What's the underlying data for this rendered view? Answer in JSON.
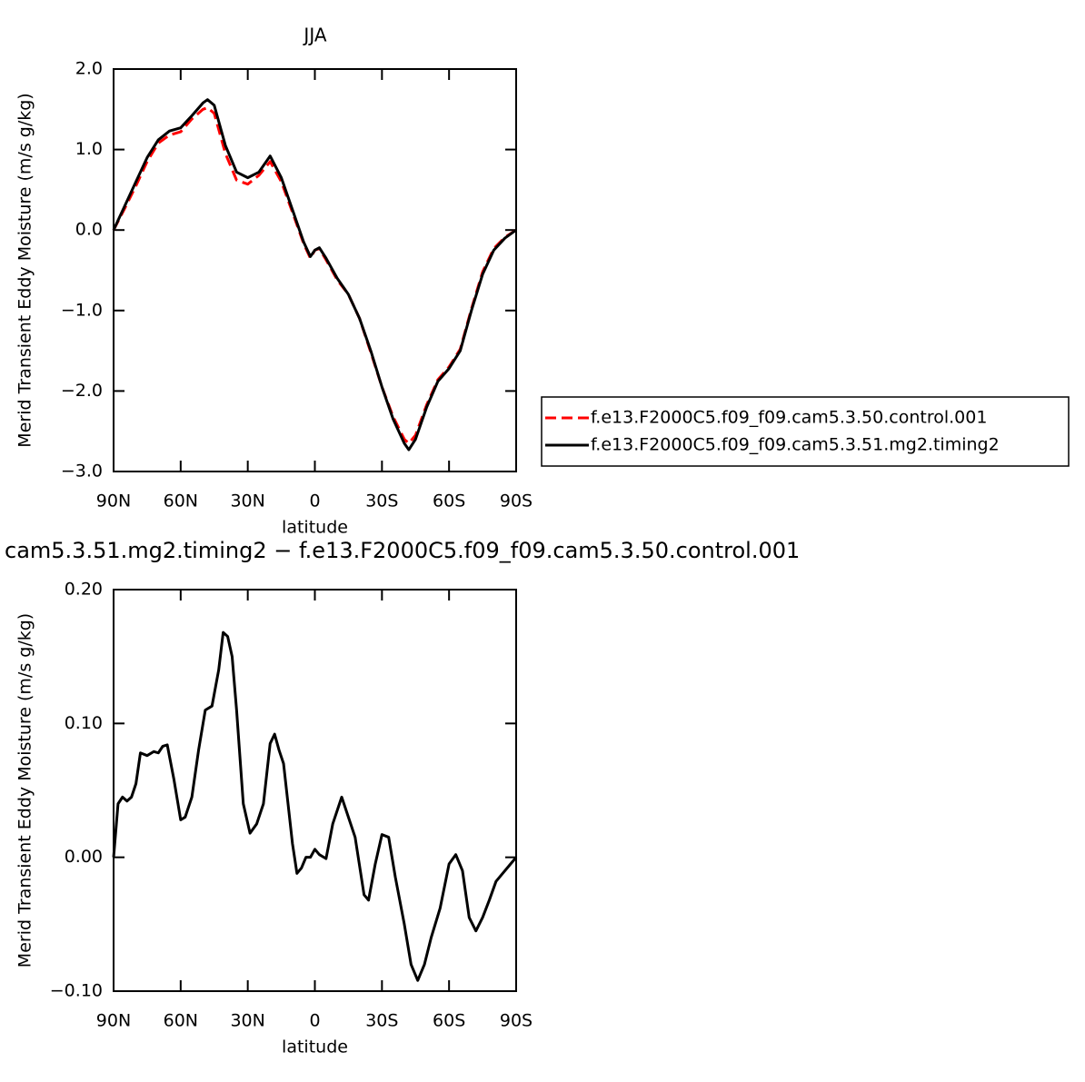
{
  "chart_data": [
    {
      "type": "line",
      "title": "JJA",
      "xlabel": "latitude",
      "ylabel": "Merid Transient Eddy Moisture (m/s g/kg)",
      "xlim": [
        90,
        -90
      ],
      "xticks": [
        {
          "value": 90,
          "label": "90N"
        },
        {
          "value": 60,
          "label": "60N"
        },
        {
          "value": 30,
          "label": "30N"
        },
        0,
        {
          "value": -30,
          "label": "30S"
        },
        {
          "value": -60,
          "label": "60S"
        },
        {
          "value": -90,
          "label": "90S"
        }
      ],
      "ylim": [
        -3,
        2
      ],
      "yticks": [
        {
          "value": -3,
          "label": "−3.0"
        },
        {
          "value": -2,
          "label": "−2.0"
        },
        {
          "value": -1,
          "label": "−1.0"
        },
        {
          "value": 0,
          "label": "0.0"
        },
        {
          "value": 1,
          "label": "1.0"
        },
        {
          "value": 2,
          "label": "2.0"
        }
      ],
      "legend": "outside right",
      "x": [
        90,
        85,
        80,
        75,
        70,
        65,
        60,
        55,
        50,
        48,
        45,
        40,
        35,
        30,
        25,
        20,
        15,
        10,
        5,
        2,
        0,
        -2,
        -5,
        -10,
        -15,
        -20,
        -25,
        -30,
        -35,
        -40,
        -42,
        -45,
        -50,
        -55,
        -60,
        -65,
        -70,
        -75,
        -80,
        -85,
        -90
      ],
      "series": [
        {
          "name": "f.e13.F2000C5.f09_f09.cam5.3.50.control.001",
          "color": "#ff0000",
          "dash": true,
          "values": [
            0,
            0.27,
            0.55,
            0.85,
            1.08,
            1.18,
            1.22,
            1.38,
            1.5,
            1.52,
            1.45,
            0.95,
            0.62,
            0.57,
            0.68,
            0.85,
            0.6,
            0.22,
            -0.17,
            -0.35,
            -0.25,
            -0.23,
            -0.37,
            -0.62,
            -0.8,
            -1.1,
            -1.52,
            -1.95,
            -2.32,
            -2.6,
            -2.65,
            -2.55,
            -2.17,
            -1.86,
            -1.7,
            -1.48,
            -0.98,
            -0.52,
            -0.23,
            -0.09,
            0
          ]
        },
        {
          "name": "f.e13.F2000C5.f09_f09.cam5.3.51.mg2.timing2",
          "color": "#000000",
          "dash": false,
          "values": [
            0,
            0.3,
            0.6,
            0.9,
            1.12,
            1.23,
            1.27,
            1.42,
            1.58,
            1.62,
            1.55,
            1.05,
            0.72,
            0.65,
            0.72,
            0.92,
            0.65,
            0.25,
            -0.15,
            -0.33,
            -0.25,
            -0.22,
            -0.35,
            -0.6,
            -0.8,
            -1.1,
            -1.5,
            -1.95,
            -2.35,
            -2.65,
            -2.73,
            -2.6,
            -2.2,
            -1.88,
            -1.72,
            -1.5,
            -1.0,
            -0.55,
            -0.25,
            -0.1,
            0
          ]
        }
      ]
    },
    {
      "type": "line",
      "title": "cam5.3.51.mg2.timing2 − f.e13.F2000C5.f09_f09.cam5.3.50.control.001",
      "xlabel": "latitude",
      "ylabel": "Merid Transient Eddy Moisture (m/s g/kg)",
      "xlim": [
        90,
        -90
      ],
      "xticks": [
        {
          "value": 90,
          "label": "90N"
        },
        {
          "value": 60,
          "label": "60N"
        },
        {
          "value": 30,
          "label": "30N"
        },
        0,
        {
          "value": -30,
          "label": "30S"
        },
        {
          "value": -60,
          "label": "60S"
        },
        {
          "value": -90,
          "label": "90S"
        }
      ],
      "ylim": [
        -0.1,
        0.2
      ],
      "yticks": [
        {
          "value": -0.1,
          "label": "−0.10"
        },
        {
          "value": 0,
          "label": "0.00"
        },
        {
          "value": 0.1,
          "label": "0.10"
        },
        {
          "value": 0.2,
          "label": "0.20"
        }
      ],
      "x": [
        90,
        88,
        86,
        84,
        82,
        80,
        78,
        75,
        72,
        70,
        68,
        66,
        63,
        60,
        58,
        55,
        52,
        49,
        46,
        43,
        41,
        39,
        37,
        35,
        32,
        29,
        26,
        23,
        20,
        18,
        16,
        14,
        12,
        10,
        8,
        6,
        4,
        2,
        0,
        -2,
        -5,
        -8,
        -12,
        -15,
        -18,
        -22,
        -24,
        -27,
        -30,
        -33,
        -36,
        -40,
        -43,
        -46,
        -49,
        -52,
        -56,
        -60,
        -63,
        -66,
        -69,
        -72,
        -75,
        -78,
        -81,
        -84,
        -87,
        -90
      ],
      "series": [
        {
          "color": "#000000",
          "dash": false,
          "values": [
            0,
            0.04,
            0.045,
            0.042,
            0.045,
            0.055,
            0.078,
            0.076,
            0.079,
            0.078,
            0.083,
            0.084,
            0.058,
            0.028,
            0.03,
            0.045,
            0.08,
            0.11,
            0.113,
            0.14,
            0.168,
            0.165,
            0.15,
            0.11,
            0.04,
            0.018,
            0.025,
            0.04,
            0.085,
            0.092,
            0.08,
            0.07,
            0.04,
            0.01,
            -0.012,
            -0.008,
            0,
            0,
            0.006,
            0.002,
            -0.001,
            0.025,
            0.045,
            0.03,
            0.015,
            -0.028,
            -0.032,
            -0.005,
            0.017,
            0.015,
            -0.015,
            -0.05,
            -0.08,
            -0.092,
            -0.08,
            -0.06,
            -0.038,
            -0.005,
            0.002,
            -0.01,
            -0.045,
            -0.055,
            -0.045,
            -0.032,
            -0.018,
            -0.012,
            -0.006,
            0
          ]
        }
      ]
    }
  ]
}
